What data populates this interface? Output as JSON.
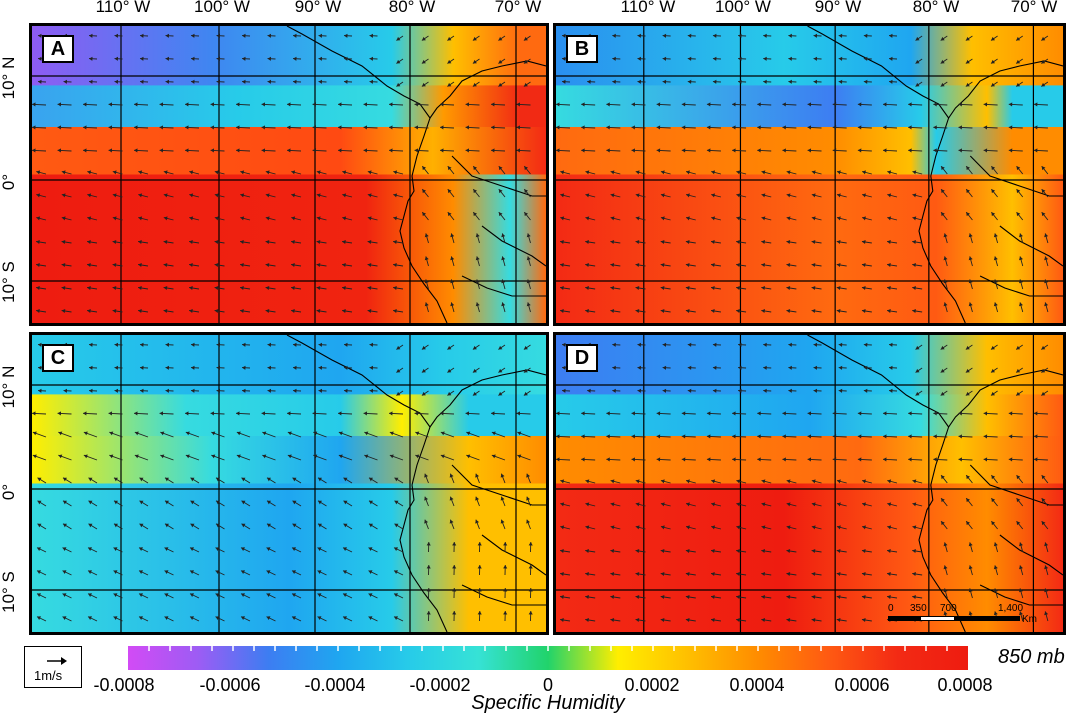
{
  "lon_labels": [
    "110° W",
    "100° W",
    "90° W",
    "80° W",
    "70° W"
  ],
  "lat_labels": [
    "10° N",
    "0°",
    "10° S"
  ],
  "panels": [
    {
      "label": "A",
      "scheme": "wet"
    },
    {
      "label": "B",
      "scheme": "mixed"
    },
    {
      "label": "C",
      "scheme": "dry"
    },
    {
      "label": "D",
      "scheme": "wet2"
    }
  ],
  "scale_bar": {
    "ticks": [
      "0",
      "350",
      "700",
      "1,400"
    ],
    "unit": "Km"
  },
  "vector_legend": {
    "label": "1m/s"
  },
  "level_label": "850 mb",
  "colorbar": {
    "title": "Specific Humidity",
    "ticks": [
      "-0.0008",
      "-0.0006",
      "-0.0004",
      "-0.0002",
      "0",
      "0.0002",
      "0.0004",
      "0.0006",
      "0.0008"
    ],
    "colors": [
      "#d24bf5",
      "#9d5cf4",
      "#3d7df2",
      "#1fa6f0",
      "#27cbe9",
      "#36e2d6",
      "#21d36b",
      "#ffee00",
      "#ffbf00",
      "#ff8c00",
      "#ff5a12",
      "#f32a14",
      "#ee1c10"
    ]
  }
}
